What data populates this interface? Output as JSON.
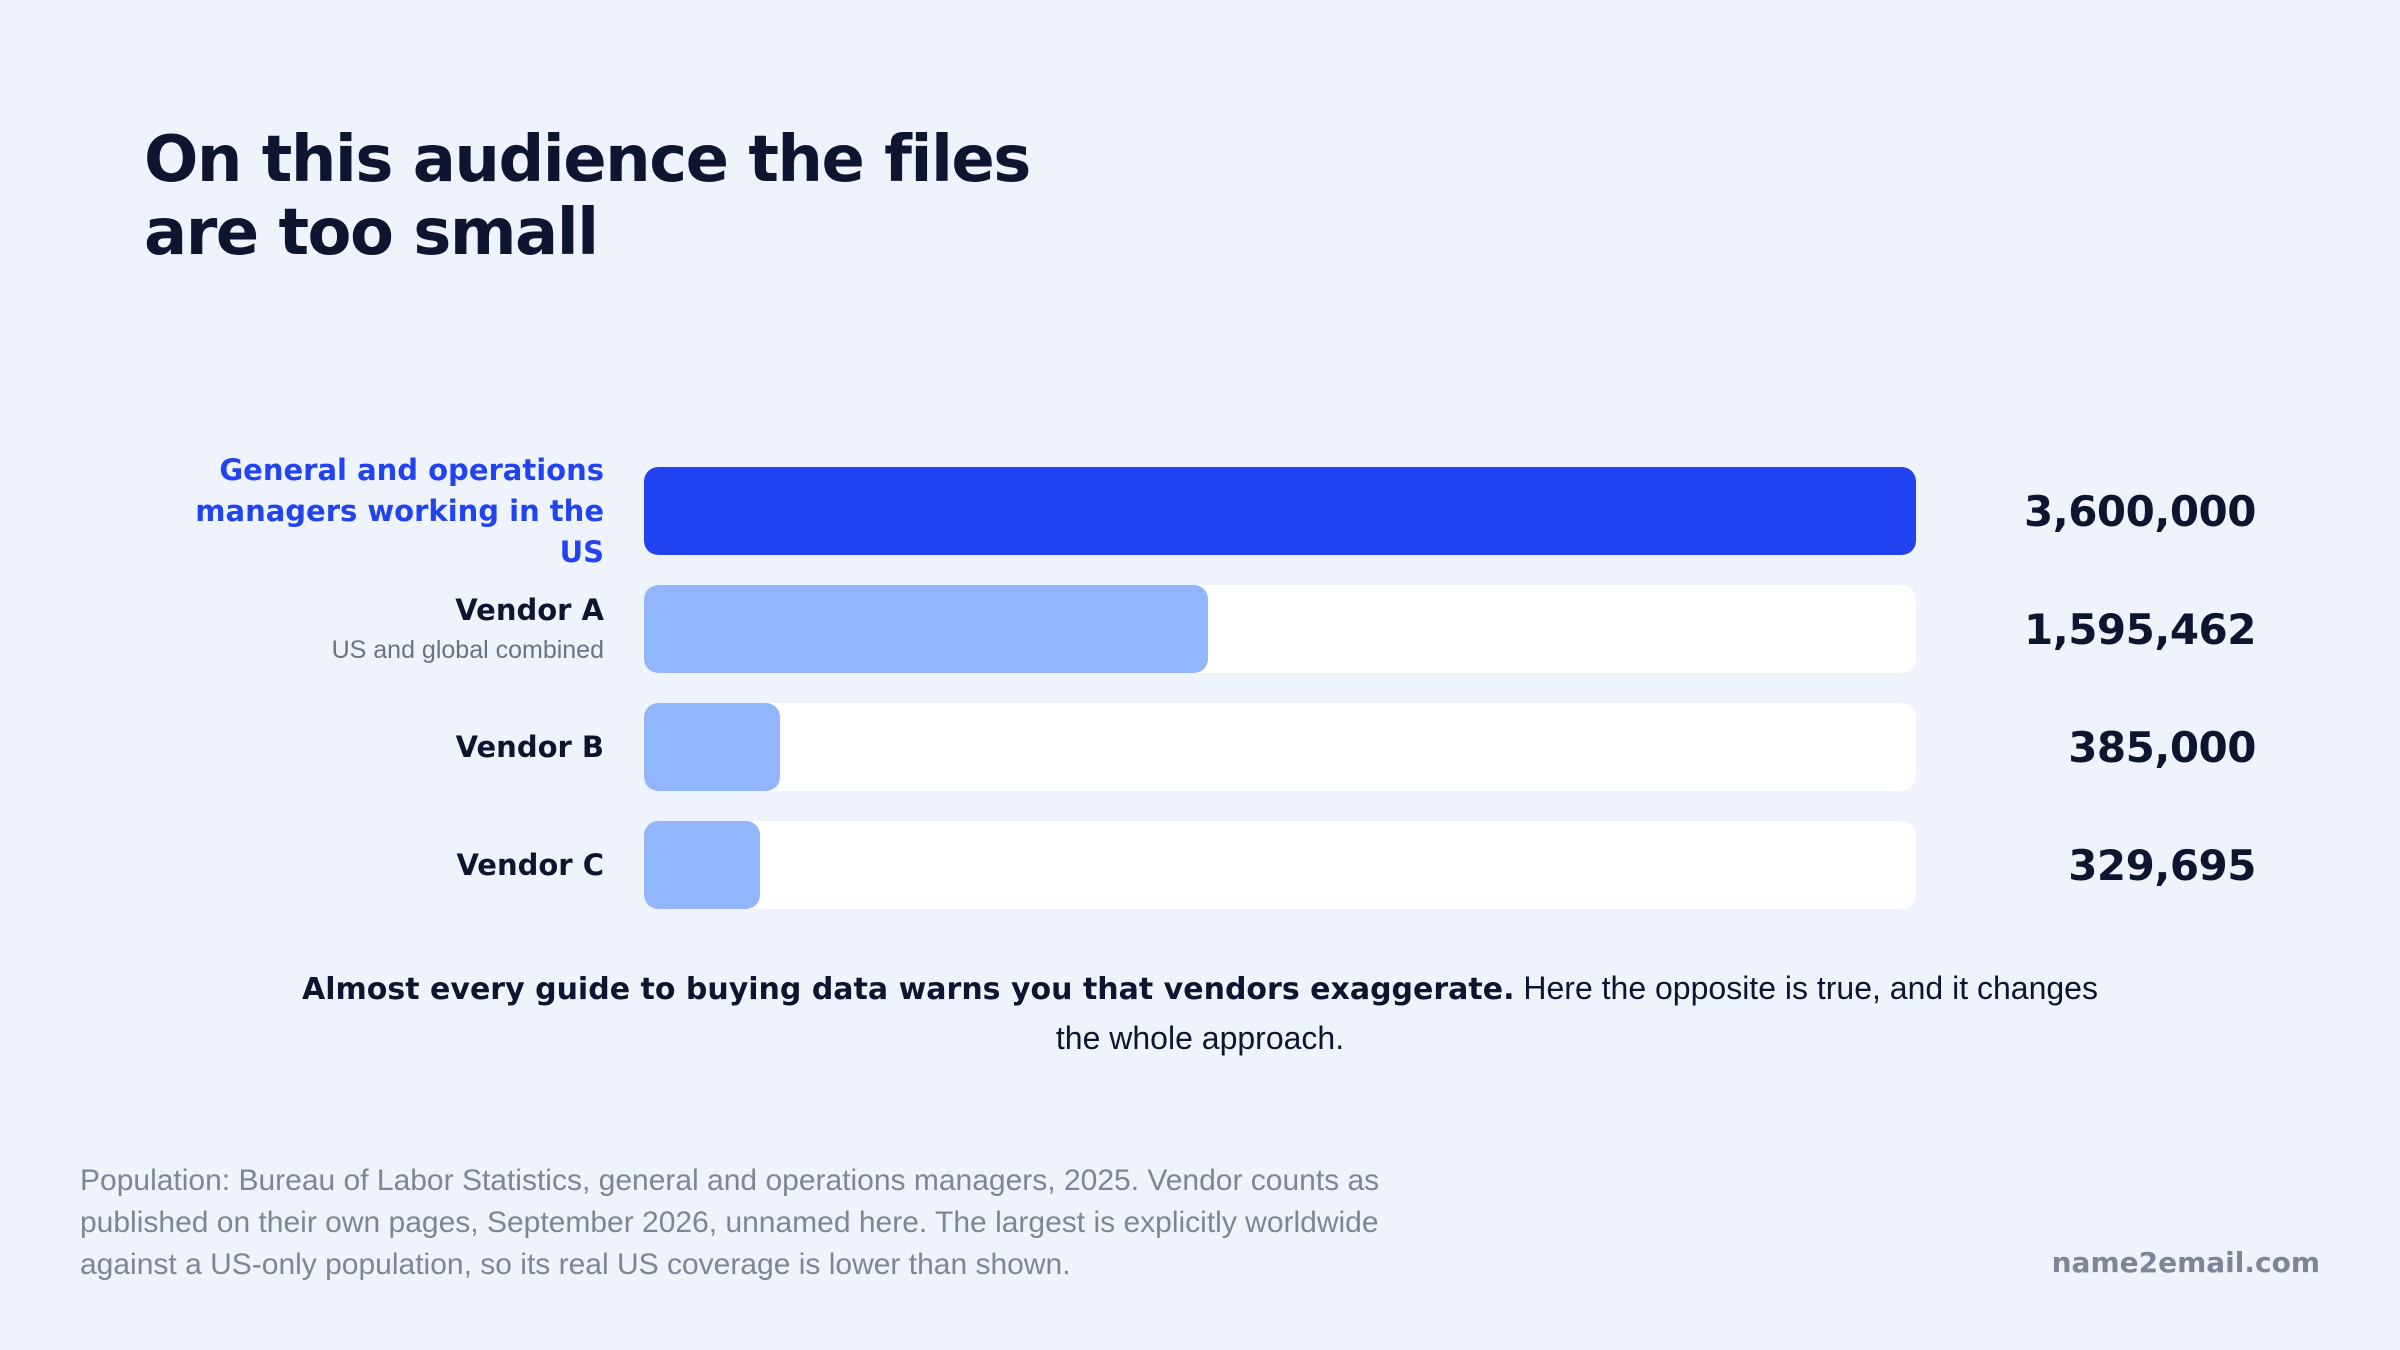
{
  "title": "On this audience the files are too small",
  "chart_data": {
    "type": "bar",
    "orientation": "horizontal",
    "categories": [
      "General and operations managers working in the US",
      "Vendor A",
      "Vendor B",
      "Vendor C"
    ],
    "sublabels": [
      "",
      "US and global combined",
      "",
      ""
    ],
    "values": [
      3600000,
      1595462,
      385000,
      329695
    ],
    "value_labels": [
      "3,600,000",
      "1,595,462",
      "385,000",
      "329,695"
    ],
    "highlight_index": 0,
    "xlim": [
      0,
      3600000
    ],
    "grid": false,
    "colors": {
      "highlight": "#2244f0",
      "bar": "#91b6fd",
      "track": "#ffffff"
    }
  },
  "takeaway": {
    "bold": "Almost every guide to buying data warns you that vendors exaggerate.",
    "rest": " Here the opposite is true, and it changes the whole approach."
  },
  "source_note": "Population: Bureau of Labor Statistics, general and operations managers, 2025. Vendor counts as published on their own pages, September 2026, unnamed here. The largest is explicitly worldwide against a US-only population, so its real US coverage is lower than shown.",
  "brand": "name2email.com"
}
